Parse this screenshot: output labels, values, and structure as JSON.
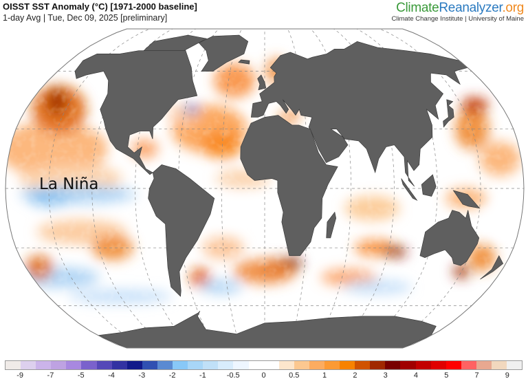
{
  "header": {
    "title": "OISST SST Anomaly (°C) [1971-2000 baseline]",
    "subtitle": "1-day Avg | Tue, Dec 09, 2025 [preliminary]",
    "brand_part1": "Climate",
    "brand_part2": "Reanalyzer",
    "brand_part3": ".org",
    "institution": "Climate Change Institute | University of Maine"
  },
  "map": {
    "projection": "Robinson",
    "annotation": "La Niña",
    "land_color": "#5f5f5f",
    "ocean_base_color": "#ffffff"
  },
  "colorbar": {
    "colors": [
      "#f0ebe8",
      "#ddd0ee",
      "#cbb4ea",
      "#bea2e2",
      "#a888e0",
      "#7a62cc",
      "#5548b8",
      "#3232a2",
      "#121a8a",
      "#3050b2",
      "#5a8ad2",
      "#88c8f8",
      "#a8d6f8",
      "#c0e0f8",
      "#d8ecfc",
      "#eef6ff",
      "#ffffff",
      "#ffffff",
      "#fde6cc",
      "#fcc890",
      "#fcac60",
      "#fc9a34",
      "#f88200",
      "#d05200",
      "#a02800",
      "#780000",
      "#a00000",
      "#c20000",
      "#e00000",
      "#ff0000",
      "#ff6262",
      "#e8a890",
      "#f2d8be",
      "#f0f0f0"
    ],
    "labels": [
      "-9",
      "-7",
      "-5",
      "-4",
      "-3",
      "-2",
      "-1",
      "-0.5",
      "0",
      "0.5",
      "1",
      "2",
      "3",
      "4",
      "5",
      "7",
      "9"
    ]
  }
}
